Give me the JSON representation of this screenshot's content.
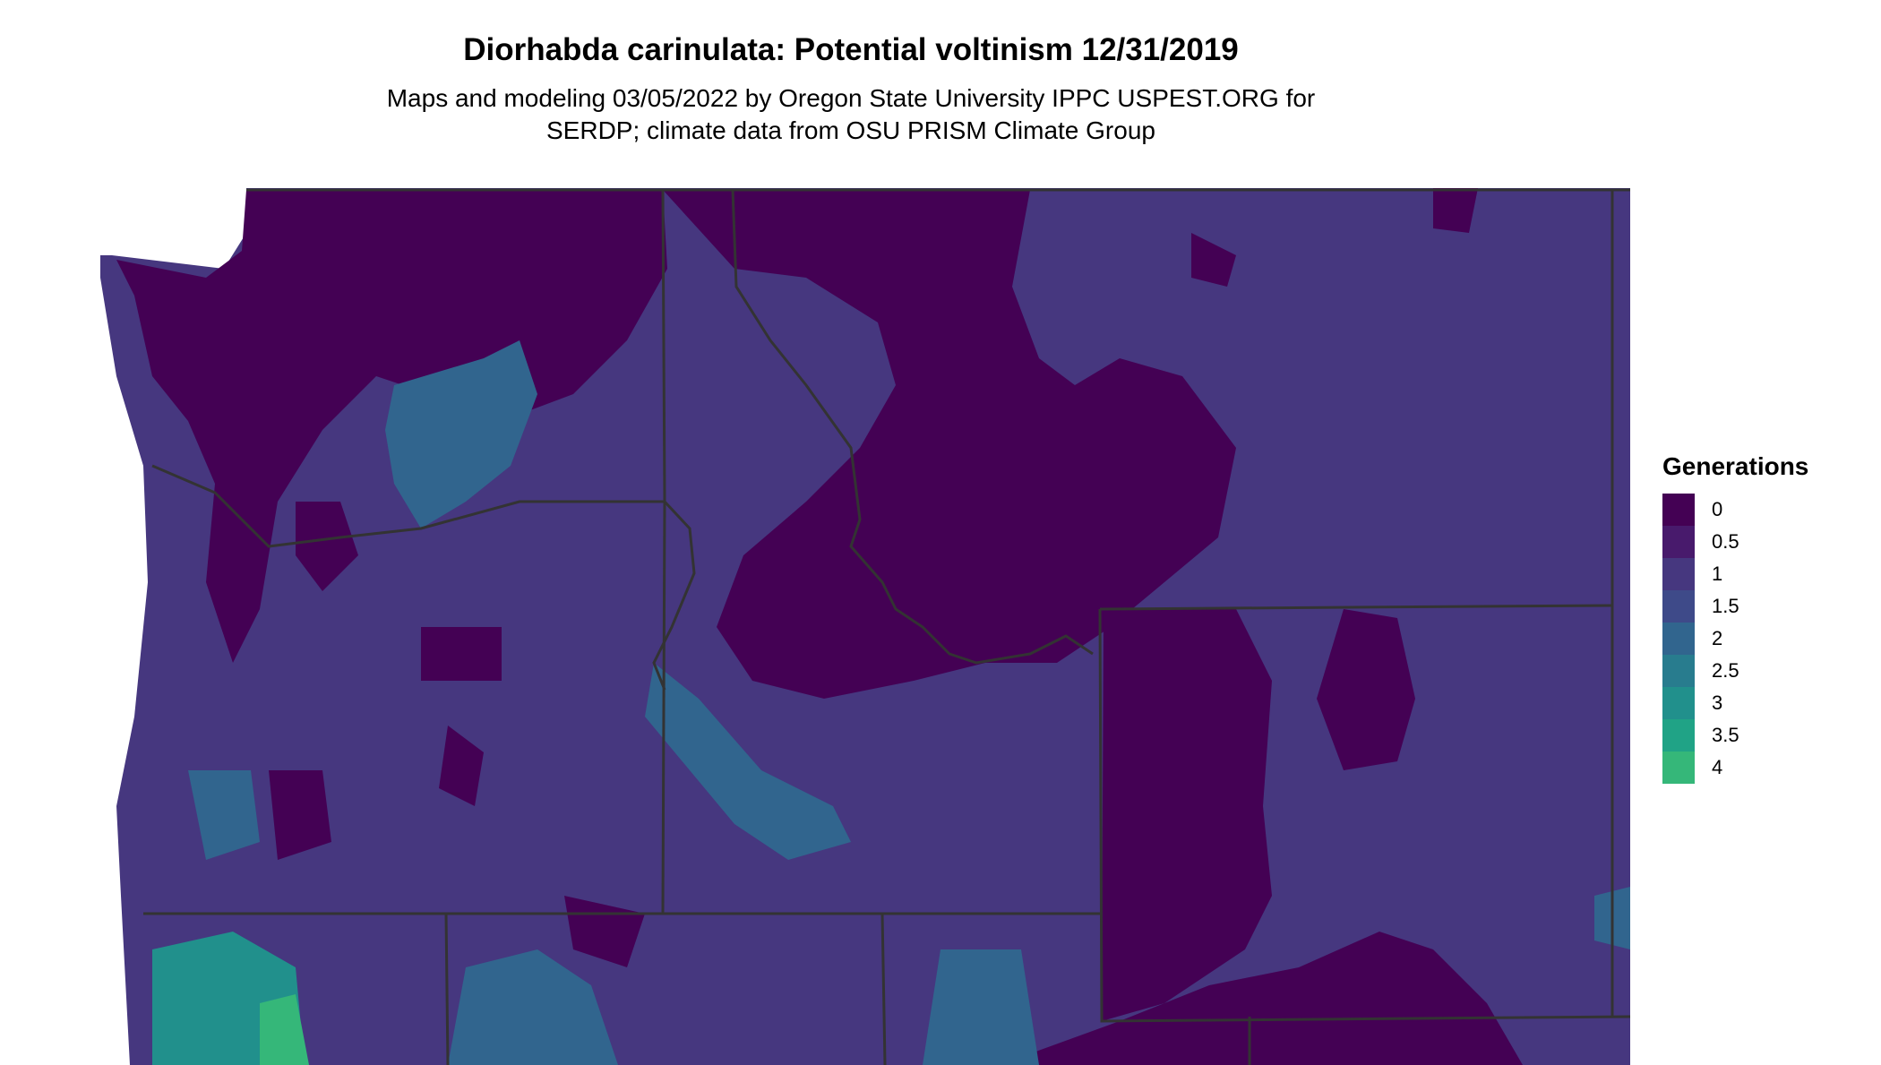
{
  "title": "Diorhabda carinulata: Potential voltinism 12/31/2019",
  "subtitle_line1": "Maps and modeling 03/05/2022 by Oregon State University IPPC USPEST.ORG for",
  "subtitle_line2": "SERDP; climate data from OSU PRISM Climate Group",
  "legend": {
    "title": "Generations",
    "items": [
      {
        "label": "0",
        "color": "#440154"
      },
      {
        "label": "0.5",
        "color": "#481A6C"
      },
      {
        "label": "1",
        "color": "#46377F"
      },
      {
        "label": "1.5",
        "color": "#3E4A89"
      },
      {
        "label": "2",
        "color": "#31658E"
      },
      {
        "label": "2.5",
        "color": "#287C8E"
      },
      {
        "label": "3",
        "color": "#21908C"
      },
      {
        "label": "3.5",
        "color": "#20A386"
      },
      {
        "label": "4",
        "color": "#35B779"
      }
    ]
  }
}
